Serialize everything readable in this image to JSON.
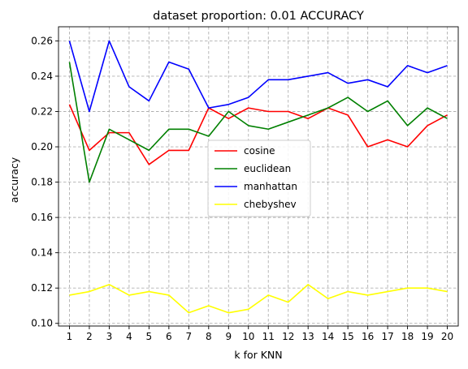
{
  "chart_data": {
    "type": "line",
    "title": "dataset proportion: 0.01 ACCURACY",
    "xlabel": "k for KNN",
    "ylabel": "accuracy",
    "x": [
      1,
      2,
      3,
      4,
      5,
      6,
      7,
      8,
      9,
      10,
      11,
      12,
      13,
      14,
      15,
      16,
      17,
      18,
      19,
      20
    ],
    "x_tick_labels": [
      "1",
      "2",
      "3",
      "4",
      "5",
      "6",
      "7",
      "8",
      "9",
      "10",
      "11",
      "12",
      "13",
      "14",
      "15",
      "16",
      "17",
      "18",
      "19",
      "20"
    ],
    "xlim": [
      0.45,
      20.55
    ],
    "ylim": [
      0.0985,
      0.268
    ],
    "y_ticks": [
      0.1,
      0.12,
      0.14,
      0.16,
      0.18,
      0.2,
      0.22,
      0.24,
      0.26
    ],
    "y_tick_labels": [
      "0.10",
      "0.12",
      "0.14",
      "0.16",
      "0.18",
      "0.20",
      "0.22",
      "0.24",
      "0.26"
    ],
    "grid": true,
    "legend_position": "center",
    "series": [
      {
        "name": "cosine",
        "color": "#ff0000",
        "values": [
          0.224,
          0.198,
          0.208,
          0.208,
          0.19,
          0.198,
          0.198,
          0.222,
          0.216,
          0.222,
          0.22,
          0.22,
          0.216,
          0.222,
          0.218,
          0.2,
          0.204,
          0.2,
          0.212,
          0.218
        ]
      },
      {
        "name": "euclidean",
        "color": "#008000",
        "values": [
          0.248,
          0.18,
          0.21,
          0.204,
          0.198,
          0.21,
          0.21,
          0.206,
          0.22,
          0.212,
          0.21,
          0.214,
          0.218,
          0.222,
          0.228,
          0.22,
          0.226,
          0.212,
          0.222,
          0.216
        ]
      },
      {
        "name": "manhattan",
        "color": "#0000ff",
        "values": [
          0.26,
          0.22,
          0.26,
          0.234,
          0.226,
          0.248,
          0.244,
          0.222,
          0.224,
          0.228,
          0.238,
          0.238,
          0.24,
          0.242,
          0.236,
          0.238,
          0.234,
          0.246,
          0.242,
          0.246
        ]
      },
      {
        "name": "chebyshev",
        "color": "#ffff00",
        "values": [
          0.116,
          0.118,
          0.122,
          0.116,
          0.118,
          0.116,
          0.106,
          0.11,
          0.106,
          0.108,
          0.116,
          0.112,
          0.122,
          0.114,
          0.118,
          0.116,
          0.118,
          0.12,
          0.12,
          0.118
        ]
      }
    ]
  }
}
